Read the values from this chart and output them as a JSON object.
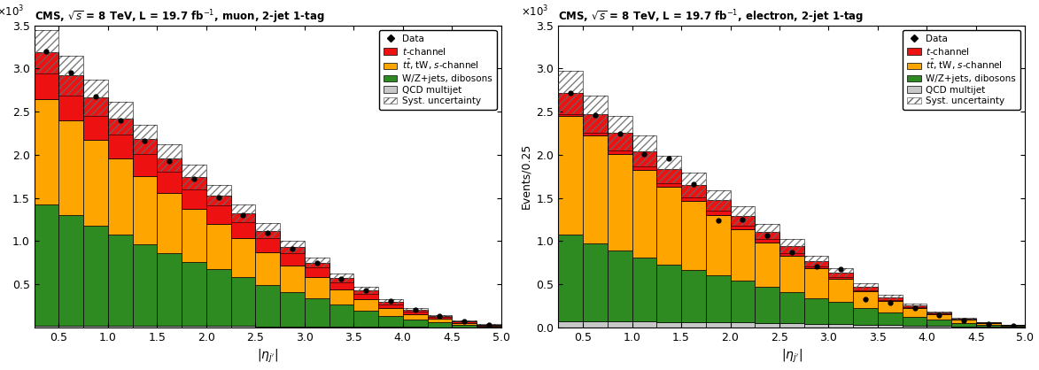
{
  "bin_left": [
    0.25,
    0.5,
    0.75,
    1.0,
    1.25,
    1.5,
    1.75,
    2.0,
    2.25,
    2.5,
    2.75,
    3.0,
    3.25,
    3.5,
    3.75,
    4.0,
    4.25,
    4.5,
    4.75
  ],
  "bin_width": 0.25,
  "muon": {
    "qcd": [
      0.02,
      0.02,
      0.02,
      0.02,
      0.02,
      0.02,
      0.02,
      0.02,
      0.02,
      0.01,
      0.01,
      0.01,
      0.01,
      0.005,
      0.005,
      0.003,
      0.002,
      0.001,
      0.001
    ],
    "wz_jets": [
      1.4,
      1.28,
      1.16,
      1.05,
      0.94,
      0.84,
      0.74,
      0.65,
      0.56,
      0.48,
      0.4,
      0.33,
      0.25,
      0.19,
      0.13,
      0.09,
      0.06,
      0.03,
      0.01
    ],
    "ttbar": [
      1.22,
      1.1,
      0.99,
      0.89,
      0.79,
      0.7,
      0.61,
      0.53,
      0.45,
      0.38,
      0.31,
      0.24,
      0.18,
      0.13,
      0.09,
      0.06,
      0.04,
      0.02,
      0.01
    ],
    "tchannel": [
      0.55,
      0.52,
      0.49,
      0.46,
      0.43,
      0.4,
      0.37,
      0.33,
      0.29,
      0.25,
      0.21,
      0.17,
      0.13,
      0.1,
      0.07,
      0.05,
      0.03,
      0.02,
      0.01
    ],
    "syst_err": [
      0.25,
      0.23,
      0.21,
      0.19,
      0.17,
      0.16,
      0.14,
      0.12,
      0.1,
      0.09,
      0.07,
      0.06,
      0.05,
      0.04,
      0.03,
      0.02,
      0.01,
      0.005,
      0.003
    ],
    "data": [
      3.2,
      2.95,
      2.67,
      2.4,
      2.16,
      1.93,
      1.72,
      1.51,
      1.3,
      1.1,
      0.91,
      0.75,
      0.56,
      0.43,
      0.3,
      0.2,
      0.13,
      0.07,
      0.03
    ],
    "ylim": [
      0,
      3.5
    ],
    "yticks": [
      0.5,
      1.0,
      1.5,
      2.0,
      2.5,
      3.0,
      3.5
    ],
    "show_ylabel": false
  },
  "electron": {
    "qcd": [
      0.07,
      0.07,
      0.07,
      0.07,
      0.06,
      0.06,
      0.06,
      0.06,
      0.05,
      0.05,
      0.04,
      0.04,
      0.03,
      0.03,
      0.02,
      0.02,
      0.01,
      0.01,
      0.005
    ],
    "wz_jets": [
      1.0,
      0.9,
      0.82,
      0.74,
      0.67,
      0.6,
      0.54,
      0.48,
      0.42,
      0.36,
      0.3,
      0.25,
      0.19,
      0.14,
      0.1,
      0.07,
      0.04,
      0.02,
      0.01
    ],
    "ttbar": [
      1.38,
      1.25,
      1.12,
      1.01,
      0.9,
      0.8,
      0.7,
      0.6,
      0.51,
      0.42,
      0.34,
      0.27,
      0.2,
      0.14,
      0.1,
      0.06,
      0.04,
      0.02,
      0.01
    ],
    "tchannel": [
      0.27,
      0.25,
      0.24,
      0.22,
      0.2,
      0.19,
      0.17,
      0.15,
      0.13,
      0.11,
      0.09,
      0.07,
      0.05,
      0.04,
      0.03,
      0.02,
      0.01,
      0.005,
      0.002
    ],
    "syst_err": [
      0.25,
      0.22,
      0.2,
      0.18,
      0.16,
      0.14,
      0.12,
      0.11,
      0.09,
      0.08,
      0.06,
      0.05,
      0.04,
      0.03,
      0.02,
      0.01,
      0.008,
      0.004,
      0.002
    ],
    "data": [
      2.72,
      2.46,
      2.24,
      2.01,
      1.96,
      1.66,
      1.24,
      1.25,
      1.06,
      0.87,
      0.71,
      0.67,
      0.33,
      0.28,
      0.22,
      0.14,
      0.08,
      0.04,
      0.02
    ],
    "ylim": [
      0,
      3.5
    ],
    "yticks": [
      0,
      0.5,
      1.0,
      1.5,
      2.0,
      2.5,
      3.0,
      3.5
    ],
    "show_ylabel": true
  },
  "colors": {
    "tchannel": "#EE1111",
    "ttbar": "#FFA500",
    "wz_jets": "#2E8B22",
    "qcd": "#C8C8C8"
  },
  "legend_labels": {
    "data": "Data",
    "tchannel": "$t$-channel",
    "ttbar": "$t\\bar{t}$, tW, $s$-channel",
    "wz_jets": "W/Z+jets, dibosons",
    "qcd": "QCD multijet",
    "syst": "Syst. uncertainty"
  },
  "title_muon": "CMS, $\\sqrt{s}$ = 8 TeV, L = 19.7 fb$^{-1}$, muon, 2-jet 1-tag",
  "title_electron": "CMS, $\\sqrt{s}$ = 8 TeV, L = 19.7 fb$^{-1}$, electron, 2-jet 1-tag",
  "xlabel": "$|\\eta_{j^{\\prime}}|$",
  "ylabel": "Events/0.25"
}
